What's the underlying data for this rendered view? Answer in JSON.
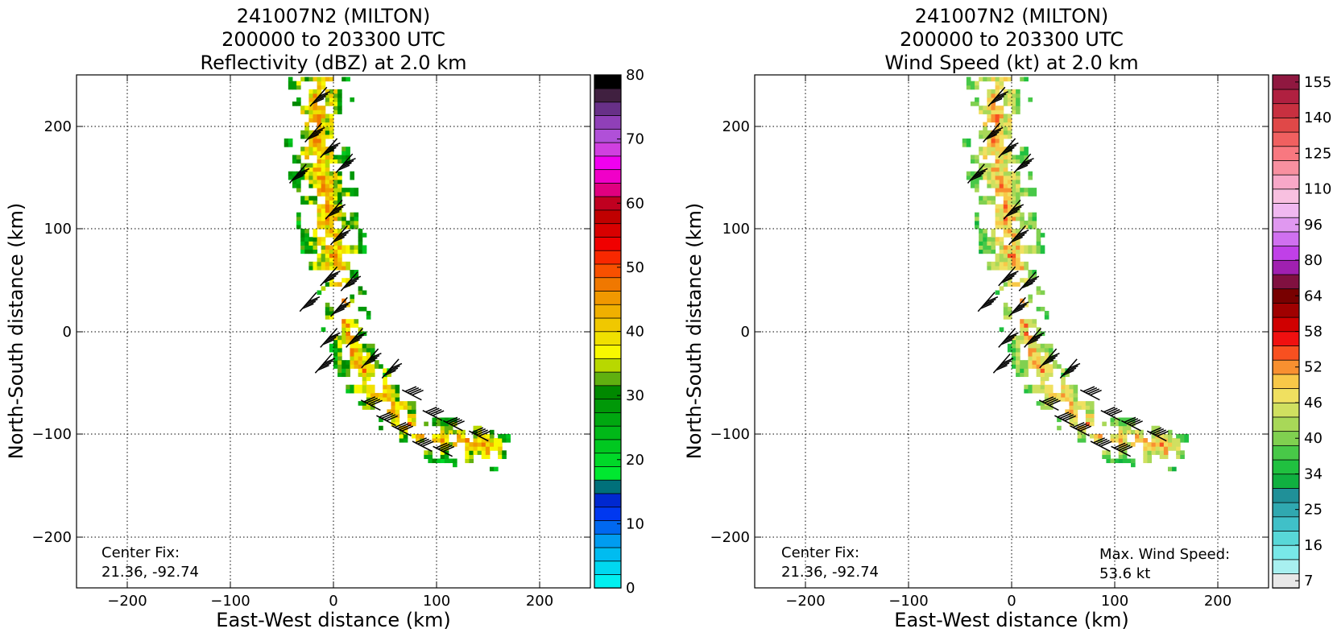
{
  "panels": [
    {
      "title_lines": [
        "241007N2 (MILTON)",
        "200000 to 203300 UTC",
        "Reflectivity (dBZ) at 2.0 km"
      ],
      "center_fix_label": "Center Fix:",
      "center_fix_value": "21.36, -92.74",
      "max_label": "",
      "max_value": ""
    },
    {
      "title_lines": [
        "241007N2 (MILTON)",
        "200000 to 203300 UTC",
        "Wind Speed (kt) at 2.0 km"
      ],
      "center_fix_label": "Center Fix:",
      "center_fix_value": "21.36, -92.74",
      "max_label": "Max. Wind Speed:",
      "max_value": "53.6 kt"
    }
  ],
  "chart_data": [
    {
      "type": "heatmap",
      "field": "reflectivity",
      "title": "241007N2 (MILTON) 200000 to 203300 UTC Reflectivity (dBZ) at 2.0 km",
      "xlabel": "East-West distance (km)",
      "ylabel": "North-South distance (km)",
      "xlim": [
        -250,
        250
      ],
      "ylim": [
        -250,
        250
      ],
      "xticks": [
        -200,
        -100,
        0,
        100,
        200
      ],
      "yticks": [
        -200,
        -100,
        0,
        100,
        200
      ],
      "grid": true,
      "colorbar": {
        "range": [
          0,
          80
        ],
        "step": 2.5,
        "tick_labels": [
          0,
          10,
          20,
          30,
          40,
          50,
          60,
          70,
          80
        ],
        "colors": [
          "#00f0f0",
          "#00d8f0",
          "#00bcf0",
          "#009cf0",
          "#0068f0",
          "#0038f0",
          "#0028d0",
          "#00707a",
          "#00e830",
          "#00d828",
          "#00c820",
          "#00b818",
          "#00a810",
          "#009808",
          "#008800",
          "#60b010",
          "#b8d800",
          "#f8f800",
          "#f0e000",
          "#f0c800",
          "#f0b000",
          "#f09800",
          "#f07800",
          "#f85000",
          "#f82800",
          "#f00000",
          "#d80000",
          "#c00000",
          "#c00020",
          "#e00080",
          "#f000c8",
          "#f000f0",
          "#d040e0",
          "#b050d8",
          "#9040b8",
          "#683088",
          "#402040",
          "#000000"
        ]
      },
      "center_fix": "21.36, -92.74"
    },
    {
      "type": "heatmap",
      "field": "wind_speed",
      "title": "241007N2 (MILTON) 200000 to 203300 UTC Wind Speed (kt) at 2.0 km",
      "xlabel": "East-West distance (km)",
      "ylabel": "North-South distance (km)",
      "xlim": [
        -250,
        250
      ],
      "ylim": [
        -250,
        250
      ],
      "xticks": [
        -200,
        -100,
        0,
        100,
        200
      ],
      "yticks": [
        -200,
        -100,
        0,
        100,
        200
      ],
      "grid": true,
      "colorbar": {
        "tick_labels": [
          7,
          16,
          25,
          34,
          40,
          46,
          52,
          58,
          64,
          80,
          96,
          110,
          125,
          140,
          155
        ],
        "colors": [
          "#e8e8e8",
          "#a8f0f0",
          "#78e8e8",
          "#58d8d8",
          "#40c0c8",
          "#30a8b0",
          "#209098",
          "#10b040",
          "#20c040",
          "#48c848",
          "#80d050",
          "#a8d858",
          "#d0e060",
          "#f0e060",
          "#f8c848",
          "#f89030",
          "#f85020",
          "#f01010",
          "#d00000",
          "#a00000",
          "#780000",
          "#801040",
          "#a020b0",
          "#c040e8",
          "#d070f0",
          "#e098f0",
          "#f0b8f0",
          "#f8c0e0",
          "#f8a8c8",
          "#f890a0",
          "#f87880",
          "#f06060",
          "#e04848",
          "#c83040",
          "#b02040",
          "#901840"
        ]
      },
      "center_fix": "21.36, -92.74",
      "max_wind_speed": "53.6 kt"
    }
  ],
  "axis": {
    "xlabel": "East-West distance (km)",
    "ylabel": "North-South distance (km)",
    "xtick_labels": [
      "−200",
      "−100",
      "0",
      "100",
      "200"
    ],
    "ytick_labels": [
      "200",
      "100",
      "0",
      "−100",
      "−200"
    ]
  },
  "colorbars": [
    {
      "labels": [
        "0",
        "10",
        "20",
        "30",
        "40",
        "50",
        "60",
        "70",
        "80"
      ]
    },
    {
      "labels": [
        "7",
        "16",
        "25",
        "34",
        "40",
        "46",
        "52",
        "58",
        "64",
        "80",
        "96",
        "110",
        "125",
        "140",
        "155"
      ]
    }
  ]
}
